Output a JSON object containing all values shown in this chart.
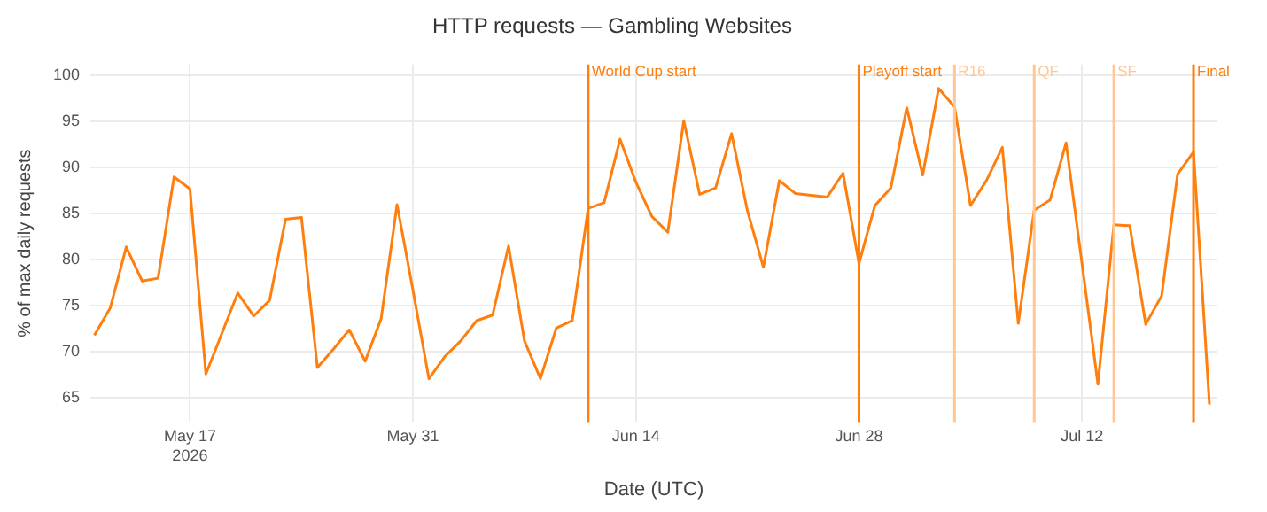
{
  "chart_data": {
    "type": "line",
    "title": "HTTP requests — Gambling Websites",
    "xlabel": "Date (UTC)",
    "ylabel": "% of max daily requests",
    "x": [
      "2026-05-11",
      "2026-05-12",
      "2026-05-13",
      "2026-05-14",
      "2026-05-15",
      "2026-05-16",
      "2026-05-17",
      "2026-05-18",
      "2026-05-19",
      "2026-05-20",
      "2026-05-21",
      "2026-05-22",
      "2026-05-23",
      "2026-05-24",
      "2026-05-25",
      "2026-05-26",
      "2026-05-27",
      "2026-05-28",
      "2026-05-29",
      "2026-05-30",
      "2026-05-31",
      "2026-06-01",
      "2026-06-02",
      "2026-06-03",
      "2026-06-04",
      "2026-06-05",
      "2026-06-06",
      "2026-06-07",
      "2026-06-08",
      "2026-06-09",
      "2026-06-10",
      "2026-06-11",
      "2026-06-12",
      "2026-06-13",
      "2026-06-14",
      "2026-06-15",
      "2026-06-16",
      "2026-06-17",
      "2026-06-18",
      "2026-06-19",
      "2026-06-20",
      "2026-06-21",
      "2026-06-22",
      "2026-06-23",
      "2026-06-24",
      "2026-06-25",
      "2026-06-26",
      "2026-06-27",
      "2026-06-28",
      "2026-06-29",
      "2026-06-30",
      "2026-07-01",
      "2026-07-02",
      "2026-07-03",
      "2026-07-04",
      "2026-07-05",
      "2026-07-06",
      "2026-07-07",
      "2026-07-08",
      "2026-07-09",
      "2026-07-10",
      "2026-07-11",
      "2026-07-12",
      "2026-07-13",
      "2026-07-14",
      "2026-07-15",
      "2026-07-16",
      "2026-07-17",
      "2026-07-18",
      "2026-07-19",
      "2026-07-20"
    ],
    "series": [
      {
        "color": "#ff7f0e",
        "values": [
          71.8,
          74.8,
          81.4,
          77.7,
          78.0,
          89.0,
          87.7,
          67.6,
          72.0,
          76.4,
          73.9,
          75.6,
          84.4,
          84.6,
          68.3,
          70.3,
          72.4,
          69.0,
          73.6,
          86.0,
          76.7,
          67.1,
          69.5,
          71.2,
          73.4,
          74.0,
          81.5,
          71.2,
          67.1,
          72.6,
          73.4,
          85.6,
          86.2,
          93.1,
          88.4,
          84.7,
          83.0,
          95.1,
          87.1,
          87.8,
          93.7,
          85.3,
          79.2,
          88.6,
          87.2,
          87.0,
          86.8,
          89.4,
          79.6,
          85.9,
          87.8,
          96.5,
          89.2,
          98.6,
          96.6,
          85.9,
          88.6,
          92.2,
          73.1,
          85.4,
          86.5,
          92.7,
          79.6,
          66.5,
          83.8,
          83.7,
          73.0,
          76.1,
          89.3,
          91.7,
          64.3
        ]
      }
    ],
    "xlim": [
      "2026-05-10T18:00",
      "2026-07-20T12:00"
    ],
    "xticks": [
      {
        "value": "2026-05-17",
        "label": "May 17\n2026"
      },
      {
        "value": "2026-05-31",
        "label": "May 31"
      },
      {
        "value": "2026-06-14",
        "label": "Jun 14"
      },
      {
        "value": "2026-06-28",
        "label": "Jun 28"
      },
      {
        "value": "2026-07-12",
        "label": "Jul 12"
      }
    ],
    "ylim": [
      62.4,
      101.2
    ],
    "yticks": [
      65,
      70,
      75,
      80,
      85,
      90,
      95,
      100
    ],
    "ref_lines": [
      {
        "axis": "x",
        "value": "2026-06-11",
        "label": "World Cup start",
        "color": "#ff7f0e"
      },
      {
        "axis": "x",
        "value": "2026-06-28",
        "label": "Playoff start",
        "color": "#ff7f0e"
      },
      {
        "axis": "x",
        "value": "2026-07-04",
        "label": "R16",
        "color": "#ffc794"
      },
      {
        "axis": "x",
        "value": "2026-07-09",
        "label": "QF",
        "color": "#ffc794"
      },
      {
        "axis": "x",
        "value": "2026-07-14",
        "label": "SF",
        "color": "#ffc794"
      },
      {
        "axis": "x",
        "value": "2026-07-19",
        "label": "Final",
        "color": "#ff7f0e"
      }
    ],
    "grid": true,
    "legend": false,
    "marker": "none",
    "line_style": "solid"
  }
}
